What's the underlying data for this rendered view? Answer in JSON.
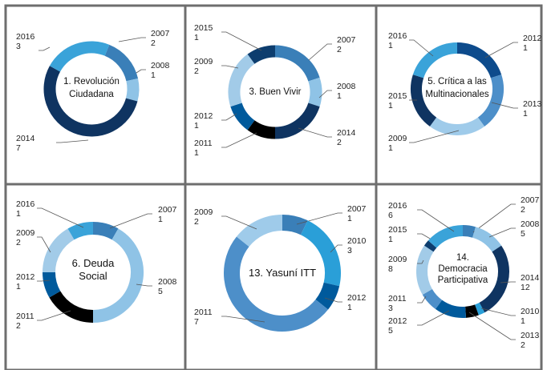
{
  "chart_data": [
    {
      "type": "pie",
      "title": "1. Revolución Ciudadana",
      "colors": {
        "2007": "#3a7fb8",
        "2008": "#8fc3e6",
        "2014": "#0f3461",
        "2016": "#3aa3d9"
      },
      "slices": [
        {
          "label": "2007",
          "value": 2
        },
        {
          "label": "2008",
          "value": 1
        },
        {
          "label": "2014",
          "value": 7
        },
        {
          "label": "2016",
          "value": 3
        }
      ]
    },
    {
      "type": "pie",
      "title": "3. Buen Vivir",
      "colors": {
        "2007": "#3a7fb8",
        "2008": "#8fc3e6",
        "2014": "#0f3461",
        "2011": "#000000",
        "2012": "#005a9c",
        "2009": "#a2cbe8",
        "2015": "#0d3d6e"
      },
      "slices": [
        {
          "label": "2007",
          "value": 2
        },
        {
          "label": "2008",
          "value": 1
        },
        {
          "label": "2014",
          "value": 2
        },
        {
          "label": "2011",
          "value": 1
        },
        {
          "label": "2012",
          "value": 1
        },
        {
          "label": "2009",
          "value": 2
        },
        {
          "label": "2015",
          "value": 1
        }
      ]
    },
    {
      "type": "pie",
      "title": "5. Crítica a las Multinacionales",
      "colors": {
        "2012": "#0d4b8c",
        "2013": "#4d8fc9",
        "2009": "#9fcbea",
        "2015": "#0f3461",
        "2016": "#3aa3d9"
      },
      "slices": [
        {
          "label": "2012",
          "value": 1
        },
        {
          "label": "2013",
          "value": 1
        },
        {
          "label": "2009",
          "value": 1
        },
        {
          "label": "2015",
          "value": 1
        },
        {
          "label": "2016",
          "value": 1
        }
      ]
    },
    {
      "type": "pie",
      "title": "6. Deuda Social",
      "colors": {
        "2007": "#3a7fb8",
        "2008": "#8fc3e6",
        "2011": "#000000",
        "2012": "#005a9c",
        "2009": "#a2cbe8",
        "2016": "#3aa3d9"
      },
      "slices": [
        {
          "label": "2007",
          "value": 1
        },
        {
          "label": "2008",
          "value": 5
        },
        {
          "label": "2011",
          "value": 2
        },
        {
          "label": "2012",
          "value": 1
        },
        {
          "label": "2009",
          "value": 2
        },
        {
          "label": "2016",
          "value": 1
        }
      ]
    },
    {
      "type": "pie",
      "title": "13. Yasuní ITT",
      "colors": {
        "2007": "#3a7fb8",
        "2010": "#2a9fd8",
        "2012": "#005a9c",
        "2011": "#4d8fc9",
        "2009": "#9fcbea"
      },
      "slices": [
        {
          "label": "2007",
          "value": 1
        },
        {
          "label": "2010",
          "value": 3
        },
        {
          "label": "2012",
          "value": 1
        },
        {
          "label": "2011",
          "value": 7
        },
        {
          "label": "2009",
          "value": 2
        }
      ]
    },
    {
      "type": "pie",
      "title": "14. Democracia Participativa",
      "colors": {
        "2007": "#3a7fb8",
        "2008": "#8fc3e6",
        "2014": "#0f3461",
        "2010": "#2a9fd8",
        "2013": "#000000",
        "2012": "#005a9c",
        "2011": "#4d8fc9",
        "2009": "#a2cbe8",
        "2015": "#0d3d6e",
        "2016": "#3aa3d9"
      },
      "slices": [
        {
          "label": "2007",
          "value": 2
        },
        {
          "label": "2008",
          "value": 5
        },
        {
          "label": "2014",
          "value": 12
        },
        {
          "label": "2010",
          "value": 1
        },
        {
          "label": "2013",
          "value": 2
        },
        {
          "label": "2012",
          "value": 5
        },
        {
          "label": "2011",
          "value": 3
        },
        {
          "label": "2009",
          "value": 8
        },
        {
          "label": "2015",
          "value": 1
        },
        {
          "label": "2016",
          "value": 6
        }
      ]
    }
  ]
}
